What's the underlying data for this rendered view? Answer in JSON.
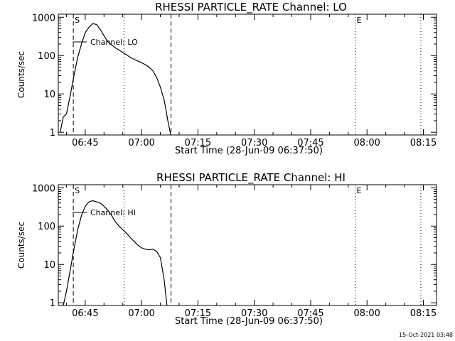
{
  "footer": {
    "timestamp": "15-Oct-2021 03:48"
  },
  "chart_data": [
    {
      "type": "line",
      "title": "RHESSI PARTICLE_RATE Channel: LO",
      "xlabel": "Start Time (28-Jun-09 06:37:50)",
      "ylabel": "Counts/sec",
      "y_scale": "log",
      "ylim": [
        0.85,
        1200
      ],
      "xlim": [
        "06:37:50",
        "08:18:30"
      ],
      "x_ticks": [
        "06:45",
        "07:00",
        "07:15",
        "07:30",
        "07:45",
        "08:00",
        "08:15"
      ],
      "y_ticks": [
        "1",
        "10",
        "100",
        "1000"
      ],
      "legend": "Channel: LO",
      "markers": [
        {
          "label": "S",
          "time": "06:41:50",
          "style": "dashed"
        },
        {
          "label": "",
          "time": "06:55:20",
          "style": "dotted"
        },
        {
          "label": "",
          "time": "07:07:50",
          "style": "dashed"
        },
        {
          "label": "E",
          "time": "07:56:50",
          "style": "dotted"
        },
        {
          "label": "",
          "time": "08:14:20",
          "style": "dotted"
        }
      ],
      "series": [
        {
          "name": "Channel: LO",
          "x": [
            "06:38:20",
            "06:39:10",
            "06:40:00",
            "06:41:00",
            "06:42:00",
            "06:43:00",
            "06:44:00",
            "06:45:00",
            "06:46:00",
            "06:47:00",
            "06:48:00",
            "06:49:00",
            "06:50:00",
            "06:51:00",
            "06:52:00",
            "06:53:00",
            "06:54:00",
            "06:55:00",
            "06:56:00",
            "06:57:00",
            "06:58:00",
            "06:59:00",
            "07:00:00",
            "07:01:00",
            "07:02:00",
            "07:03:00",
            "07:04:00",
            "07:05:00",
            "07:06:00",
            "07:07:00",
            "07:07:45"
          ],
          "y": [
            1.0,
            2.5,
            3.0,
            9.0,
            30,
            90,
            200,
            400,
            550,
            680,
            650,
            480,
            330,
            230,
            190,
            160,
            140,
            120,
            105,
            90,
            80,
            72,
            65,
            58,
            50,
            40,
            27,
            15,
            7,
            2.0,
            0.85
          ]
        }
      ]
    },
    {
      "type": "line",
      "title": "RHESSI PARTICLE_RATE Channel: HI",
      "xlabel": "Start Time (28-Jun-09 06:37:50)",
      "ylabel": "Counts/sec",
      "y_scale": "log",
      "ylim": [
        0.85,
        1200
      ],
      "xlim": [
        "06:37:50",
        "08:18:30"
      ],
      "x_ticks": [
        "06:45",
        "07:00",
        "07:15",
        "07:30",
        "07:45",
        "08:00",
        "08:15"
      ],
      "y_ticks": [
        "1",
        "10",
        "100",
        "1000"
      ],
      "legend": "Channel: HI",
      "markers": [
        {
          "label": "S",
          "time": "06:41:50",
          "style": "dashed"
        },
        {
          "label": "",
          "time": "06:55:20",
          "style": "dotted"
        },
        {
          "label": "",
          "time": "07:07:50",
          "style": "dashed"
        },
        {
          "label": "E",
          "time": "07:56:50",
          "style": "dotted"
        },
        {
          "label": "",
          "time": "08:14:20",
          "style": "dotted"
        }
      ],
      "series": [
        {
          "name": "Channel: HI",
          "x": [
            "06:39:10",
            "06:40:00",
            "06:41:00",
            "06:42:00",
            "06:43:00",
            "06:44:00",
            "06:45:00",
            "06:46:00",
            "06:47:00",
            "06:48:00",
            "06:49:00",
            "06:50:00",
            "06:51:00",
            "06:52:00",
            "06:53:00",
            "06:54:00",
            "06:55:00",
            "06:56:00",
            "06:57:00",
            "06:58:00",
            "06:59:00",
            "07:00:00",
            "07:01:00",
            "07:02:00",
            "07:03:00",
            "07:04:00",
            "07:05:00",
            "07:06:00",
            "07:06:45"
          ],
          "y": [
            0.85,
            2.0,
            7.0,
            25,
            80,
            190,
            330,
            430,
            460,
            430,
            400,
            330,
            260,
            190,
            130,
            100,
            80,
            65,
            50,
            40,
            32,
            27,
            25,
            24,
            25,
            22,
            15,
            4.0,
            0.85
          ]
        }
      ]
    }
  ]
}
